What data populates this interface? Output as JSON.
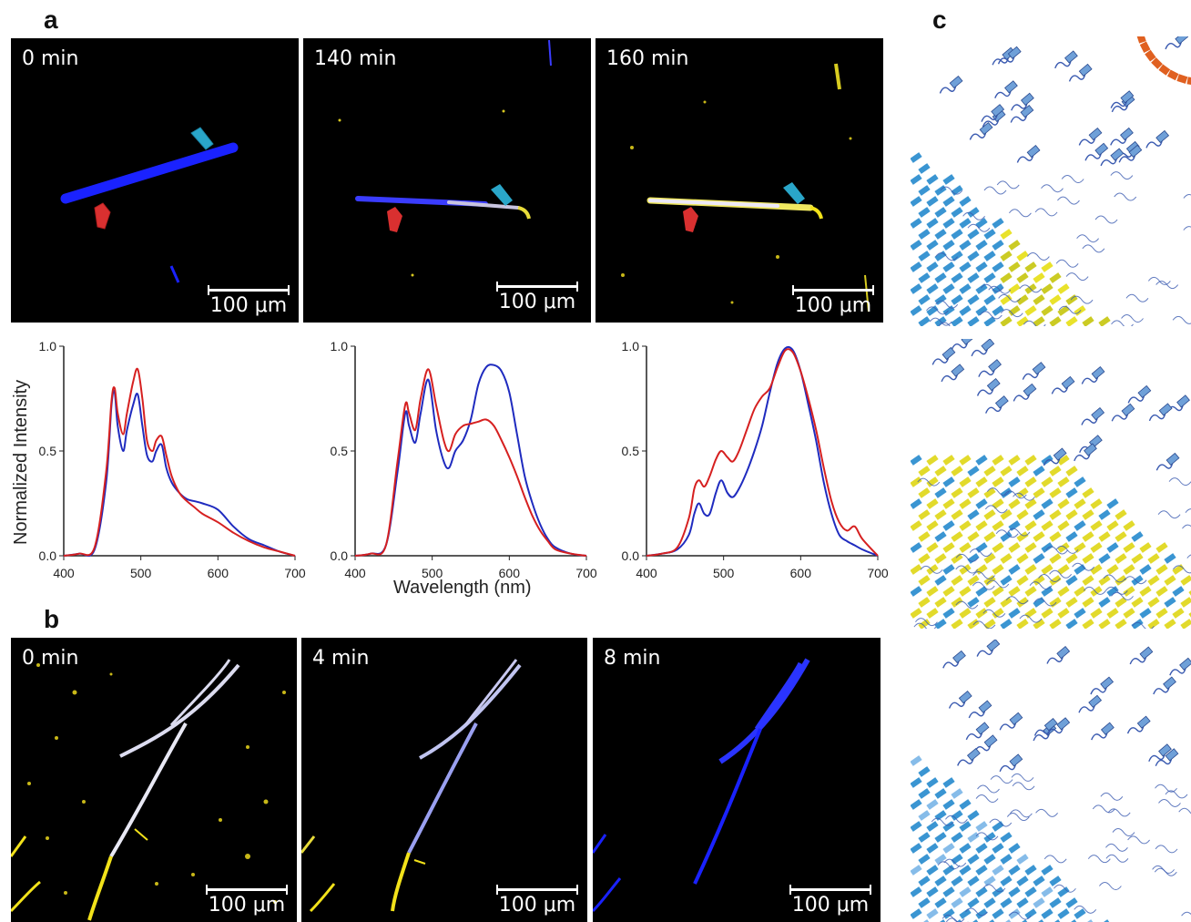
{
  "panels": {
    "a": "a",
    "b": "b",
    "c": "c"
  },
  "panel_a": {
    "images": [
      {
        "time": "0 min",
        "scale": "100 μm"
      },
      {
        "time": "140 min",
        "scale": "100 μm"
      },
      {
        "time": "160 min",
        "scale": "100 μm"
      }
    ]
  },
  "panel_b": {
    "images": [
      {
        "time": "0 min",
        "scale": "100 μm"
      },
      {
        "time": "4 min",
        "scale": "100 μm"
      },
      {
        "time": "8 min",
        "scale": "100 μm"
      }
    ]
  },
  "colors": {
    "blue_series": "#1f2bbf",
    "red_series": "#d62020",
    "fiber_blue": "#1a22ff",
    "fiber_yellow": "#f2e21a",
    "marker_red": "#d93030",
    "marker_cyan": "#2aa6c9"
  },
  "axes": {
    "ylabel": "Normalized Intensity",
    "xlabel": "Wavelength (nm)"
  },
  "chart_data": [
    {
      "type": "line",
      "xlim": [
        400,
        700
      ],
      "ylim": [
        0,
        1.0
      ],
      "xticks": [
        "400",
        "500",
        "600",
        "700"
      ],
      "yticks": [
        "0.0",
        "0.5",
        "1.0"
      ],
      "ylabel": "Normalized Intensity",
      "series": [
        {
          "color": "#1f2bbf",
          "x": [
            400,
            420,
            440,
            455,
            462,
            466,
            470,
            477,
            482,
            490,
            496,
            502,
            508,
            515,
            520,
            527,
            533,
            540,
            550,
            560,
            570,
            580,
            600,
            620,
            640,
            660,
            680,
            700
          ],
          "y": [
            0,
            0.01,
            0.03,
            0.35,
            0.72,
            0.78,
            0.62,
            0.5,
            0.6,
            0.72,
            0.77,
            0.62,
            0.48,
            0.45,
            0.5,
            0.53,
            0.42,
            0.35,
            0.3,
            0.27,
            0.26,
            0.25,
            0.22,
            0.14,
            0.08,
            0.05,
            0.02,
            0
          ]
        },
        {
          "color": "#d62020",
          "x": [
            400,
            420,
            440,
            455,
            462,
            466,
            470,
            477,
            482,
            490,
            496,
            502,
            508,
            515,
            520,
            527,
            533,
            540,
            550,
            560,
            570,
            580,
            600,
            620,
            640,
            660,
            680,
            700
          ],
          "y": [
            0,
            0.01,
            0.04,
            0.4,
            0.74,
            0.8,
            0.68,
            0.58,
            0.68,
            0.83,
            0.89,
            0.75,
            0.55,
            0.5,
            0.55,
            0.57,
            0.48,
            0.38,
            0.3,
            0.26,
            0.23,
            0.2,
            0.16,
            0.11,
            0.07,
            0.04,
            0.02,
            0
          ]
        }
      ]
    },
    {
      "type": "line",
      "xlim": [
        400,
        700
      ],
      "ylim": [
        0,
        1.0
      ],
      "xticks": [
        "400",
        "500",
        "600",
        "700"
      ],
      "yticks": [
        "0.0",
        "0.5",
        "1.0"
      ],
      "xlabel": "Wavelength (nm)",
      "series": [
        {
          "color": "#1f2bbf",
          "x": [
            400,
            420,
            440,
            455,
            465,
            470,
            478,
            485,
            495,
            505,
            515,
            522,
            530,
            540,
            550,
            560,
            570,
            580,
            590,
            600,
            610,
            620,
            630,
            640,
            650,
            660,
            680,
            700
          ],
          "y": [
            0,
            0.01,
            0.05,
            0.4,
            0.68,
            0.62,
            0.54,
            0.68,
            0.84,
            0.6,
            0.45,
            0.42,
            0.5,
            0.55,
            0.65,
            0.82,
            0.9,
            0.91,
            0.88,
            0.78,
            0.58,
            0.38,
            0.25,
            0.15,
            0.08,
            0.04,
            0.01,
            0
          ]
        },
        {
          "color": "#d62020",
          "x": [
            400,
            420,
            440,
            455,
            465,
            470,
            478,
            485,
            495,
            505,
            515,
            522,
            530,
            540,
            550,
            560,
            570,
            580,
            590,
            600,
            610,
            620,
            630,
            640,
            650,
            660,
            680,
            700
          ],
          "y": [
            0,
            0.01,
            0.05,
            0.45,
            0.72,
            0.68,
            0.6,
            0.75,
            0.89,
            0.72,
            0.55,
            0.5,
            0.58,
            0.62,
            0.63,
            0.64,
            0.65,
            0.62,
            0.55,
            0.47,
            0.38,
            0.28,
            0.19,
            0.12,
            0.07,
            0.03,
            0.01,
            0
          ]
        }
      ]
    },
    {
      "type": "line",
      "xlim": [
        400,
        700
      ],
      "ylim": [
        0,
        1.0
      ],
      "xticks": [
        "400",
        "500",
        "600",
        "700"
      ],
      "yticks": [
        "0.0",
        "0.5",
        "1.0"
      ],
      "series": [
        {
          "color": "#1f2bbf",
          "x": [
            400,
            420,
            440,
            455,
            462,
            468,
            475,
            482,
            490,
            497,
            505,
            512,
            520,
            530,
            540,
            550,
            560,
            570,
            580,
            590,
            600,
            610,
            620,
            630,
            640,
            650,
            660,
            670,
            680,
            700
          ],
          "y": [
            0,
            0.01,
            0.03,
            0.1,
            0.2,
            0.25,
            0.2,
            0.2,
            0.3,
            0.36,
            0.3,
            0.28,
            0.32,
            0.4,
            0.5,
            0.62,
            0.78,
            0.92,
            0.99,
            0.98,
            0.88,
            0.72,
            0.55,
            0.35,
            0.2,
            0.1,
            0.07,
            0.05,
            0.03,
            0
          ]
        },
        {
          "color": "#d62020",
          "x": [
            400,
            420,
            440,
            455,
            462,
            468,
            475,
            482,
            490,
            497,
            505,
            512,
            520,
            530,
            540,
            550,
            560,
            570,
            580,
            590,
            600,
            610,
            620,
            630,
            640,
            650,
            660,
            670,
            680,
            700
          ],
          "y": [
            0,
            0.01,
            0.04,
            0.18,
            0.32,
            0.36,
            0.33,
            0.38,
            0.46,
            0.5,
            0.47,
            0.45,
            0.5,
            0.6,
            0.7,
            0.76,
            0.8,
            0.9,
            0.98,
            0.97,
            0.88,
            0.75,
            0.6,
            0.42,
            0.26,
            0.16,
            0.12,
            0.14,
            0.08,
            0
          ]
        }
      ]
    }
  ]
}
